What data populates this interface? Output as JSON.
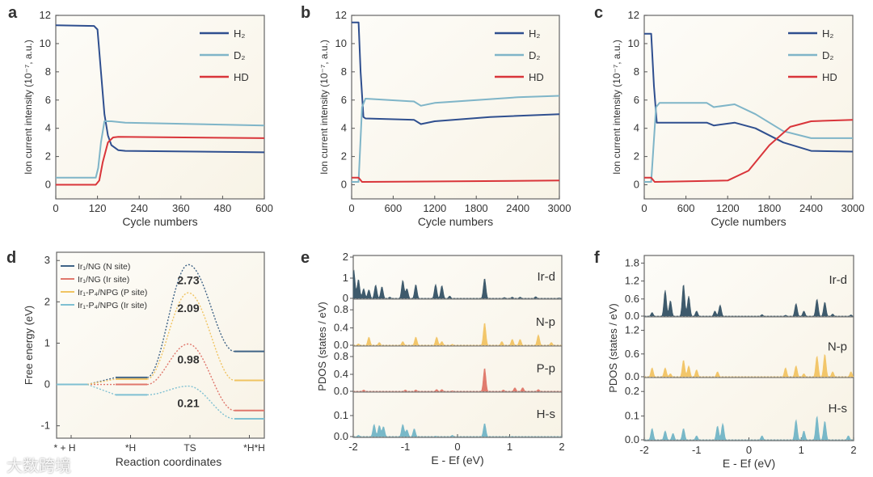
{
  "watermark": "大数跨境",
  "colors": {
    "H2": "#2f4f8f",
    "D2": "#7fb5c8",
    "HD": "#d9353a",
    "bg": "#fbf8ef"
  },
  "chart_data": [
    {
      "panel": "a",
      "type": "line",
      "xlabel": "Cycle numbers",
      "ylabel": "Ion current intensity (10⁻⁷, a.u.)",
      "xlim": [
        0,
        600
      ],
      "ylim": [
        -1,
        12
      ],
      "xticks": [
        0,
        120,
        240,
        360,
        480,
        600
      ],
      "yticks": [
        0,
        2,
        4,
        6,
        8,
        10,
        12
      ],
      "legend_position": "top-right",
      "series": [
        {
          "name": "H₂",
          "color": "#2f4f8f",
          "x": [
            0,
            110,
            120,
            130,
            140,
            150,
            160,
            180,
            200,
            600
          ],
          "y": [
            11.3,
            11.25,
            11,
            8,
            5,
            3.5,
            2.8,
            2.45,
            2.4,
            2.3
          ]
        },
        {
          "name": "D₂",
          "color": "#7fb5c8",
          "x": [
            0,
            115,
            122,
            130,
            140,
            160,
            200,
            600
          ],
          "y": [
            0.5,
            0.5,
            1.2,
            3,
            4.5,
            4.5,
            4.4,
            4.2
          ]
        },
        {
          "name": "HD",
          "color": "#d9353a",
          "x": [
            0,
            115,
            125,
            135,
            150,
            165,
            180,
            600
          ],
          "y": [
            0,
            0,
            0.3,
            1.6,
            3,
            3.35,
            3.4,
            3.3
          ]
        }
      ]
    },
    {
      "panel": "b",
      "type": "line",
      "xlabel": "Cycle numbers",
      "ylabel": "Ion current intensity (10⁻⁷, a.u.)",
      "xlim": [
        0,
        3000
      ],
      "ylim": [
        -1,
        12
      ],
      "xticks": [
        0,
        600,
        1200,
        1800,
        2400,
        3000
      ],
      "yticks": [
        0,
        2,
        4,
        6,
        8,
        10,
        12
      ],
      "legend_position": "top-right",
      "series": [
        {
          "name": "H₂",
          "color": "#2f4f8f",
          "x": [
            0,
            100,
            130,
            170,
            200,
            900,
            1000,
            1200,
            2000,
            3000
          ],
          "y": [
            11.5,
            11.5,
            8,
            4.8,
            4.7,
            4.6,
            4.3,
            4.5,
            4.8,
            5
          ]
        },
        {
          "name": "D₂",
          "color": "#7fb5c8",
          "x": [
            0,
            100,
            150,
            200,
            900,
            1000,
            1200,
            2400,
            3000
          ],
          "y": [
            0.2,
            0.2,
            5.5,
            6.1,
            5.9,
            5.6,
            5.8,
            6.2,
            6.3
          ]
        },
        {
          "name": "HD",
          "color": "#d9353a",
          "x": [
            0,
            100,
            150,
            3000
          ],
          "y": [
            0.5,
            0.5,
            0.2,
            0.3
          ]
        }
      ]
    },
    {
      "panel": "c",
      "type": "line",
      "xlabel": "Cycle numbers",
      "ylabel": "Ion current intensity (10⁻⁷, a.u.)",
      "xlim": [
        0,
        3000
      ],
      "ylim": [
        -1,
        12
      ],
      "xticks": [
        0,
        600,
        1200,
        1800,
        2400,
        3000
      ],
      "yticks": [
        0,
        2,
        4,
        6,
        8,
        10,
        12
      ],
      "legend_position": "top-right",
      "series": [
        {
          "name": "H₂",
          "color": "#2f4f8f",
          "x": [
            0,
            100,
            140,
            180,
            900,
            1000,
            1300,
            1600,
            2000,
            2400,
            3000
          ],
          "y": [
            10.7,
            10.7,
            7,
            4.4,
            4.4,
            4.2,
            4.4,
            4,
            3,
            2.4,
            2.35
          ]
        },
        {
          "name": "D₂",
          "color": "#7fb5c8",
          "x": [
            0,
            100,
            170,
            220,
            900,
            1000,
            1300,
            1600,
            2000,
            2400,
            3000
          ],
          "y": [
            0.2,
            0.2,
            5.5,
            5.8,
            5.8,
            5.5,
            5.7,
            5,
            3.8,
            3.3,
            3.3
          ]
        },
        {
          "name": "HD",
          "color": "#d9353a",
          "x": [
            0,
            100,
            150,
            1200,
            1500,
            1800,
            2100,
            2400,
            3000
          ],
          "y": [
            0.5,
            0.5,
            0.2,
            0.3,
            1,
            2.8,
            4.1,
            4.5,
            4.6
          ]
        }
      ]
    },
    {
      "panel": "d",
      "type": "line",
      "xlabel": "Reaction coordinates",
      "ylabel": "Free energy (eV)",
      "ylim": [
        -1.3,
        3.2
      ],
      "yticks": [
        -1,
        0,
        1,
        2,
        3
      ],
      "categories": [
        "* + H",
        "*H",
        "TS",
        "*H*H"
      ],
      "legend_position": "top-left",
      "series": [
        {
          "name": "Ir₁/NG (N site)",
          "color": "#3f6386",
          "values": [
            0,
            0.17,
            2.9,
            0.8
          ],
          "barrier_label": "2.73"
        },
        {
          "name": "Ir₁/NG (Ir site)",
          "color": "#e0776c",
          "values": [
            0,
            0,
            0.98,
            -0.63
          ],
          "barrier_label": "0.98"
        },
        {
          "name": "Ir₁-P₄/NPG (P site)",
          "color": "#f0c462",
          "values": [
            0,
            0.13,
            2.22,
            0.1
          ],
          "barrier_label": "2.09"
        },
        {
          "name": "Ir₁-P₄/NPG (Ir site)",
          "color": "#7fc0d2",
          "values": [
            0,
            -0.25,
            -0.04,
            -0.83
          ],
          "barrier_label": "0.21"
        }
      ]
    },
    {
      "panel": "e",
      "type": "area",
      "xlabel": "E - Ef (eV)",
      "ylabel": "PDOS (states / eV)",
      "xlim": [
        -2,
        2
      ],
      "xticks": [
        -2,
        -1,
        0,
        1,
        2
      ],
      "subplots": [
        {
          "name": "Ir-d",
          "color": "#3e5a6c",
          "ylim": [
            0,
            2
          ],
          "yticks": [
            "0",
            "1",
            "2"
          ],
          "peaks": [
            [
              -1.99,
              1.4
            ],
            [
              -1.9,
              0.95
            ],
            [
              -1.8,
              0.5
            ],
            [
              -1.7,
              0.45
            ],
            [
              -1.57,
              0.68
            ],
            [
              -1.45,
              0.6
            ],
            [
              -1.3,
              0.1
            ],
            [
              -1.05,
              0.9
            ],
            [
              -0.97,
              0.5
            ],
            [
              -0.8,
              0.7
            ],
            [
              -0.42,
              0.7
            ],
            [
              -0.3,
              0.65
            ],
            [
              -0.15,
              0.15
            ],
            [
              0.52,
              1.0
            ],
            [
              0.9,
              0.08
            ],
            [
              1.05,
              0.1
            ],
            [
              1.2,
              0.1
            ],
            [
              1.5,
              0.12
            ],
            [
              1.95,
              0.06
            ]
          ]
        },
        {
          "name": "N-p",
          "color": "#f2c66a",
          "ylim": [
            0,
            1
          ],
          "yticks": [
            "0.0",
            "0.4",
            "0.8"
          ],
          "peaks": [
            [
              -1.9,
              0.05
            ],
            [
              -1.7,
              0.2
            ],
            [
              -1.5,
              0.08
            ],
            [
              -1.05,
              0.1
            ],
            [
              -0.8,
              0.2
            ],
            [
              -0.4,
              0.2
            ],
            [
              -0.3,
              0.1
            ],
            [
              -0.1,
              0.04
            ],
            [
              0.52,
              0.52
            ],
            [
              0.85,
              0.1
            ],
            [
              1.05,
              0.15
            ],
            [
              1.2,
              0.15
            ],
            [
              1.55,
              0.25
            ],
            [
              1.8,
              0.08
            ]
          ]
        },
        {
          "name": "P-p",
          "color": "#e07c6e",
          "ylim": [
            0,
            1
          ],
          "yticks": [
            "0.0",
            "0.4",
            "0.8"
          ],
          "peaks": [
            [
              -1.8,
              0.05
            ],
            [
              -1.0,
              0.05
            ],
            [
              -0.8,
              0.05
            ],
            [
              -0.4,
              0.06
            ],
            [
              -0.3,
              0.06
            ],
            [
              -0.1,
              0.03
            ],
            [
              0.52,
              0.55
            ],
            [
              0.88,
              0.05
            ],
            [
              1.1,
              0.1
            ],
            [
              1.25,
              0.1
            ],
            [
              1.55,
              0.06
            ]
          ]
        },
        {
          "name": "H-s",
          "color": "#78b8c8",
          "ylim": [
            0,
            0.2
          ],
          "yticks": [
            "0.0",
            "0.1"
          ],
          "peaks": [
            [
              -1.9,
              0.01
            ],
            [
              -1.6,
              0.06
            ],
            [
              -1.5,
              0.055
            ],
            [
              -1.42,
              0.05
            ],
            [
              -1.05,
              0.06
            ],
            [
              -0.97,
              0.035
            ],
            [
              -0.83,
              0.04
            ],
            [
              -0.42,
              0.006
            ],
            [
              -0.1,
              0.01
            ],
            [
              0.52,
              0.065
            ],
            [
              1.05,
              0.005
            ]
          ]
        }
      ]
    },
    {
      "panel": "f",
      "type": "area",
      "xlabel": "E - Ef (eV)",
      "ylabel": "PDOS (states / eV)",
      "xlim": [
        -2,
        2
      ],
      "xticks": [
        -2,
        -1,
        0,
        1,
        2
      ],
      "subplots": [
        {
          "name": "Ir-d",
          "color": "#3e5a6c",
          "ylim": [
            0,
            2
          ],
          "yticks": [
            "0.0",
            "0.6",
            "1.2",
            "1.8"
          ],
          "peaks": [
            [
              -1.85,
              0.15
            ],
            [
              -1.6,
              0.9
            ],
            [
              -1.5,
              0.55
            ],
            [
              -1.25,
              1.1
            ],
            [
              -1.15,
              0.7
            ],
            [
              -1.0,
              0.2
            ],
            [
              -0.65,
              0.2
            ],
            [
              -0.55,
              0.4
            ],
            [
              0.25,
              0.08
            ],
            [
              0.7,
              0.06
            ],
            [
              0.9,
              0.45
            ],
            [
              1.05,
              0.2
            ],
            [
              1.3,
              0.6
            ],
            [
              1.45,
              0.5
            ],
            [
              1.6,
              0.1
            ],
            [
              1.95,
              0.07
            ]
          ]
        },
        {
          "name": "N-p",
          "color": "#f2c66a",
          "ylim": [
            0,
            1.5
          ],
          "yticks": [
            "0.0",
            "0.6",
            "1.2"
          ],
          "peaks": [
            [
              -1.85,
              0.25
            ],
            [
              -1.6,
              0.25
            ],
            [
              -1.5,
              0.1
            ],
            [
              -1.25,
              0.45
            ],
            [
              -1.15,
              0.3
            ],
            [
              -1.0,
              0.2
            ],
            [
              -0.6,
              0.15
            ],
            [
              0.7,
              0.25
            ],
            [
              0.9,
              0.3
            ],
            [
              1.05,
              0.1
            ],
            [
              1.3,
              0.55
            ],
            [
              1.45,
              0.6
            ],
            [
              1.6,
              0.15
            ],
            [
              1.95,
              0.15
            ]
          ]
        },
        {
          "name": "H-s",
          "color": "#78b8c8",
          "ylim": [
            0,
            0.25
          ],
          "yticks": [
            "0.0",
            "0.1",
            "0.2"
          ],
          "peaks": [
            [
              -1.85,
              0.05
            ],
            [
              -1.6,
              0.04
            ],
            [
              -1.45,
              0.03
            ],
            [
              -1.25,
              0.05
            ],
            [
              -1.0,
              0.02
            ],
            [
              -0.6,
              0.06
            ],
            [
              -0.5,
              0.07
            ],
            [
              0.25,
              0.02
            ],
            [
              0.9,
              0.085
            ],
            [
              1.05,
              0.04
            ],
            [
              1.3,
              0.1
            ],
            [
              1.45,
              0.08
            ],
            [
              1.9,
              0.02
            ]
          ]
        }
      ]
    }
  ]
}
